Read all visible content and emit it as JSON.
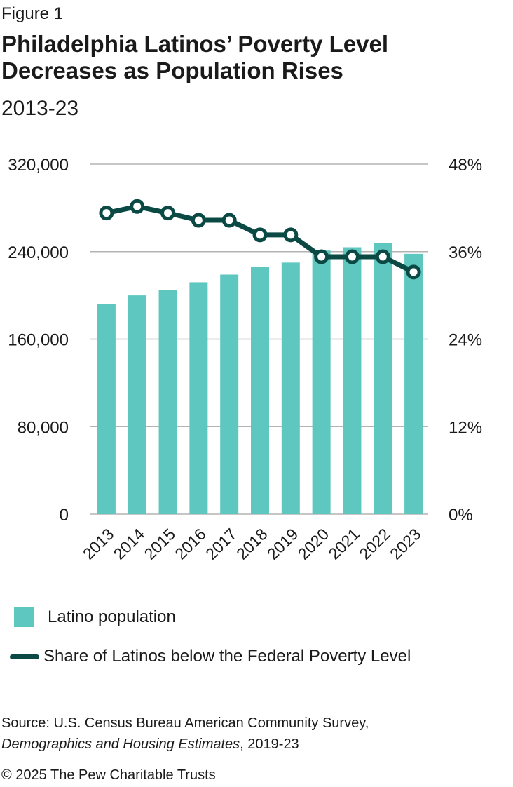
{
  "figure_label": "Figure 1",
  "title": "Philadelphia Latinos’ Poverty Level Decreases as Population Rises",
  "subtitle": "2013-23",
  "legend": {
    "bar_label": "Latino population",
    "line_label": "Share of Latinos below the Federal Poverty Level"
  },
  "source": {
    "prefix": "Source: U.S. Census Bureau American Community Survey,",
    "italic": "Demographics and Housing Estimates",
    "suffix": ", 2019-23"
  },
  "copyright": "© 2025 The Pew Charitable Trusts",
  "colors": {
    "bar": "#5ec8c0",
    "line": "#0b4a44",
    "grid": "#b3b3b3"
  },
  "chart_data": {
    "type": "bar",
    "categories": [
      "2013",
      "2014",
      "2015",
      "2016",
      "2017",
      "2018",
      "2019",
      "2020",
      "2021",
      "2022",
      "2023"
    ],
    "series": [
      {
        "name": "Latino population",
        "type": "bar",
        "axis": "left",
        "values": [
          192000,
          200000,
          205000,
          212000,
          219000,
          226000,
          230000,
          241000,
          244000,
          248000,
          238000
        ]
      },
      {
        "name": "Share of Latinos below the Federal Poverty Level",
        "type": "line",
        "axis": "right",
        "values": [
          41.3,
          42.2,
          41.3,
          40.3,
          40.3,
          38.3,
          38.3,
          35.3,
          35.3,
          35.3,
          33.2
        ]
      }
    ],
    "y_left": {
      "ylim": [
        0,
        320000
      ],
      "ticks": [
        "0",
        "80,000",
        "160,000",
        "240,000",
        "320,000"
      ]
    },
    "y_right": {
      "ylim": [
        0,
        48
      ],
      "ticks": [
        "0%",
        "12%",
        "24%",
        "36%",
        "48%"
      ]
    },
    "grid": true,
    "legend_position": "bottom-left"
  }
}
